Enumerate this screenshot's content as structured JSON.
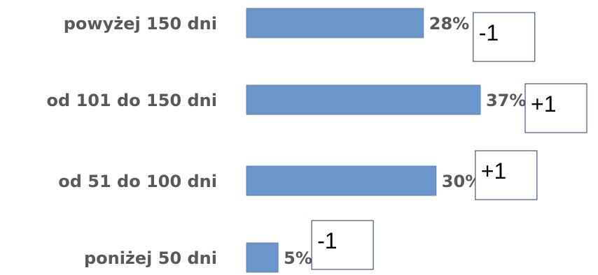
{
  "chart_data": {
    "type": "bar",
    "orientation": "horizontal",
    "categories": [
      "powyżej 150 dni",
      "od 101 do 150 dni",
      "od 51 do 100 dni",
      "poniżej 50  dni"
    ],
    "values": [
      28,
      37,
      30,
      5
    ],
    "value_labels": [
      "28%",
      "37%",
      "30%",
      "5%"
    ],
    "annotations": [
      "-1",
      "+1",
      "+1",
      "-1"
    ],
    "bar_color": "#6a96c9",
    "xlim": [
      0,
      37
    ],
    "grid": false,
    "legend": "none"
  }
}
